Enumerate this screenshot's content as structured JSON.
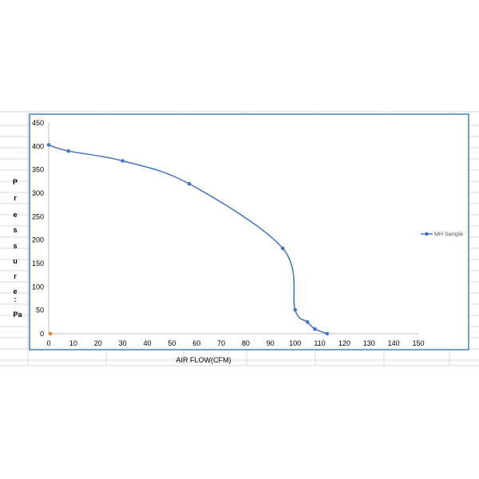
{
  "chart_data": {
    "type": "line",
    "title": "",
    "xlabel": "AIR FLOW(CFM)",
    "ylabel_letters": [
      "P",
      "r",
      "e",
      "s",
      "s",
      "u",
      "r",
      "e",
      ":",
      "Pa"
    ],
    "xlim": [
      0,
      150
    ],
    "ylim": [
      0,
      450
    ],
    "x_ticks": [
      0,
      10,
      20,
      30,
      40,
      50,
      60,
      70,
      80,
      90,
      100,
      110,
      120,
      130,
      140,
      150
    ],
    "y_ticks": [
      0,
      50,
      100,
      150,
      200,
      250,
      300,
      350,
      400,
      450
    ],
    "grid": false,
    "legend_position": "right",
    "series": [
      {
        "name": "MH Sample",
        "color": "#4472c4",
        "smooth": true,
        "x": [
          0,
          8,
          30,
          57,
          95,
          100,
          105,
          108,
          113
        ],
        "y": [
          403,
          390,
          369,
          320,
          182,
          51,
          25,
          10,
          0
        ]
      },
      {
        "color": "#ed7d31",
        "x": [
          0
        ],
        "y": [
          0
        ]
      }
    ]
  }
}
